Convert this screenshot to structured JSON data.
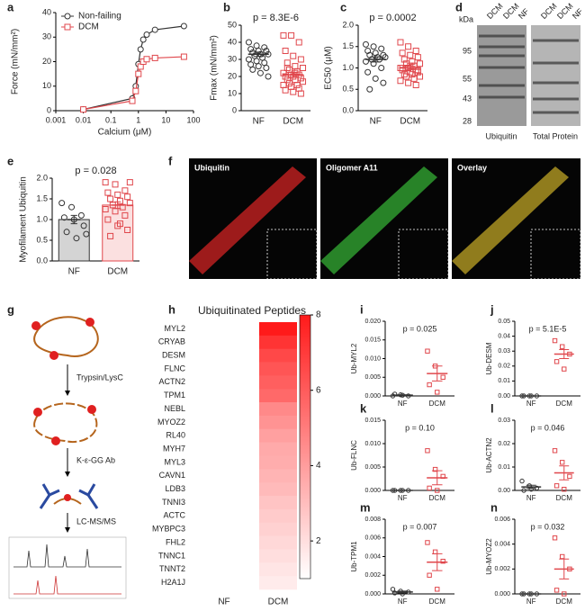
{
  "chart_data": [
    {
      "type": "line",
      "panel": "a",
      "xlabel": "Calcium (μM)",
      "ylabel": "Force (mN/mm²)",
      "xlog": true,
      "xlim": [
        0.001,
        100
      ],
      "xticks": [
        0.001,
        0.01,
        0.1,
        1,
        10,
        100
      ],
      "ylim": [
        0,
        40
      ],
      "yticks": [
        0,
        10,
        20,
        30,
        40
      ],
      "legend": "upper-left",
      "x": [
        0.01,
        0.6,
        0.8,
        1,
        1.2,
        1.5,
        2,
        4,
        45
      ],
      "series": [
        {
          "name": "Non-failing",
          "color": "#333333",
          "marker": "circle",
          "values": [
            0.5,
            5,
            10,
            19,
            25,
            29,
            31,
            33,
            34.5
          ]
        },
        {
          "name": "DCM",
          "color": "#e0474c",
          "marker": "square",
          "values": [
            0.5,
            4,
            8,
            15,
            18,
            20,
            21,
            21.5,
            22
          ]
        }
      ]
    },
    {
      "type": "strip",
      "panel": "b",
      "title": "p = 8.3E-6",
      "ylabel": "Fmax (mN/mm²)",
      "categories": [
        "NF",
        "DCM"
      ],
      "ylim": [
        0,
        50
      ],
      "yticks": [
        0,
        10,
        20,
        30,
        40,
        50
      ],
      "groups": [
        {
          "color": "#333333",
          "marker": "circle",
          "mean": 33,
          "sem": 1.3,
          "values": [
            40,
            38,
            37,
            36,
            35,
            35,
            34,
            33,
            33,
            32,
            31,
            30,
            29,
            28,
            27,
            26,
            25,
            24,
            22,
            20
          ]
        },
        {
          "color": "#e0474c",
          "marker": "square",
          "mean": 21,
          "sem": 1.4,
          "values": [
            44,
            44,
            40,
            35,
            32,
            30,
            28,
            26,
            25,
            24,
            23,
            22,
            21,
            21,
            20,
            20,
            19,
            18,
            18,
            17,
            16,
            15,
            15,
            14,
            13,
            12,
            11,
            10,
            25,
            22
          ]
        }
      ]
    },
    {
      "type": "strip",
      "panel": "c",
      "title": "p = 0.0002",
      "ylabel": "EC50 (μM)",
      "categories": [
        "NF",
        "DCM"
      ],
      "ylim": [
        0,
        2
      ],
      "yticks": [
        {
          "value": 0,
          "label": "0.0"
        },
        {
          "value": 0.5,
          "label": "0.5"
        },
        {
          "value": 1,
          "label": "1.0"
        },
        {
          "value": 1.5,
          "label": "1.5"
        },
        {
          "value": 2,
          "label": "2.0"
        }
      ],
      "groups": [
        {
          "color": "#333333",
          "marker": "circle",
          "mean": 1.2,
          "sem": 0.06,
          "values": [
            1.55,
            1.5,
            1.45,
            1.4,
            1.35,
            1.3,
            1.3,
            1.25,
            1.25,
            1.2,
            1.2,
            1.15,
            1.1,
            1.0,
            0.9,
            0.75,
            0.65,
            0.5
          ]
        },
        {
          "color": "#e0474c",
          "marker": "square",
          "mean": 1.0,
          "sem": 0.04,
          "values": [
            1.6,
            1.5,
            1.4,
            1.35,
            1.3,
            1.25,
            1.2,
            1.15,
            1.1,
            1.1,
            1.05,
            1.0,
            1.0,
            0.95,
            0.95,
            0.9,
            0.9,
            0.85,
            0.85,
            0.8,
            0.8,
            0.75,
            0.7,
            0.65,
            0.6,
            1.0,
            1.05,
            0.95
          ]
        }
      ]
    },
    {
      "type": "bar",
      "panel": "e",
      "title": "p = 0.028",
      "ylabel": "Myofilament Ubiquitin",
      "categories": [
        "NF",
        "DCM"
      ],
      "ylim": [
        0,
        2
      ],
      "yticks": [
        {
          "value": 0,
          "label": "0.0"
        },
        {
          "value": 0.5,
          "label": "0.5"
        },
        {
          "value": 1,
          "label": "1.0"
        },
        {
          "value": 1.5,
          "label": "1.5"
        },
        {
          "value": 2,
          "label": "2.0"
        }
      ],
      "groups": [
        {
          "color": "#333333",
          "fill": "#d4d4d4",
          "marker": "circle",
          "mean": 1.0,
          "sem": 0.1,
          "values": [
            1.4,
            1.3,
            1.1,
            1.05,
            1.0,
            0.85,
            0.7,
            0.55,
            0.65
          ]
        },
        {
          "color": "#e0474c",
          "fill": "#fbe0e0",
          "marker": "square",
          "mean": 1.35,
          "sem": 0.08,
          "values": [
            1.9,
            1.85,
            1.7,
            1.65,
            1.6,
            1.55,
            1.5,
            1.45,
            1.4,
            1.35,
            1.3,
            1.25,
            1.2,
            1.1,
            1.0,
            0.85,
            0.75,
            0.6,
            0.9,
            1.9
          ]
        }
      ]
    },
    {
      "type": "heatmap",
      "panel": "h",
      "title": "Ubiquitinated Peptides",
      "columns": [
        "NF",
        "DCM"
      ],
      "colormap": [
        "#ffffff",
        "#ff1a1a"
      ],
      "zlim": [
        1,
        8
      ],
      "zticks": [
        2,
        4,
        6,
        8
      ],
      "rows": [
        "MYL2",
        "CRYAB",
        "DESM",
        "FLNC",
        "ACTN2",
        "TPM1",
        "NEBL",
        "MYOZ2",
        "RL40",
        "MYH7",
        "MYL3",
        "CAVN1",
        "LDB3",
        "TNNI3",
        "ACTC",
        "MYBPC3",
        "FHL2",
        "TNNC1",
        "TNNT2",
        "H2A1J"
      ],
      "values": [
        [
          1,
          8
        ],
        [
          1,
          7.2
        ],
        [
          1,
          6.6
        ],
        [
          1,
          6.2
        ],
        [
          1,
          5.9
        ],
        [
          1,
          5.6
        ],
        [
          1,
          4.6
        ],
        [
          1,
          4.3
        ],
        [
          1,
          3.9
        ],
        [
          1,
          3.6
        ],
        [
          1,
          3.5
        ],
        [
          1,
          3.3
        ],
        [
          1,
          3.1
        ],
        [
          1,
          2.8
        ],
        [
          1,
          2.6
        ],
        [
          1,
          2.4
        ],
        [
          1,
          2.2
        ],
        [
          1,
          2.0
        ],
        [
          1,
          1.8
        ],
        [
          1,
          1.6
        ]
      ]
    },
    {
      "type": "strip",
      "panel": "i",
      "title": "p = 0.025",
      "ylabel": "Ub-MYL2",
      "categories": [
        "NF",
        "DCM"
      ],
      "ylim": [
        0,
        0.02
      ],
      "yticks": [
        {
          "value": 0,
          "label": "0.000"
        },
        {
          "value": 0.005,
          "label": "0.005"
        },
        {
          "value": 0.01,
          "label": "0.010"
        },
        {
          "value": 0.015,
          "label": "0.015"
        },
        {
          "value": 0.02,
          "label": "0.020"
        }
      ],
      "groups": [
        {
          "color": "#333333",
          "marker": "circle",
          "mean": 0.0002,
          "sem": 0.0001,
          "values": [
            0,
            0.0003,
            0,
            0.0005,
            0.0002
          ]
        },
        {
          "color": "#e0474c",
          "marker": "square",
          "mean": 0.006,
          "sem": 0.002,
          "values": [
            0.012,
            0.008,
            0.005,
            0.003,
            0.001
          ]
        }
      ]
    },
    {
      "type": "strip",
      "panel": "j",
      "title": "p = 5.1E-5",
      "ylabel": "Ub-DESM",
      "categories": [
        "NF",
        "DCM"
      ],
      "ylim": [
        0,
        0.05
      ],
      "yticks": [
        {
          "value": 0,
          "label": "0.00"
        },
        {
          "value": 0.01,
          "label": "0.01"
        },
        {
          "value": 0.02,
          "label": "0.02"
        },
        {
          "value": 0.03,
          "label": "0.03"
        },
        {
          "value": 0.04,
          "label": "0.04"
        },
        {
          "value": 0.05,
          "label": "0.05"
        }
      ],
      "groups": [
        {
          "color": "#333333",
          "marker": "circle",
          "mean": 0,
          "sem": 0,
          "values": [
            0,
            0,
            0,
            0,
            0
          ]
        },
        {
          "color": "#e0474c",
          "marker": "square",
          "mean": 0.028,
          "sem": 0.003,
          "values": [
            0.037,
            0.033,
            0.028,
            0.023,
            0.018
          ]
        }
      ]
    },
    {
      "type": "strip",
      "panel": "k",
      "title": "p = 0.10",
      "ylabel": "Ub-FLNC",
      "categories": [
        "NF",
        "DCM"
      ],
      "ylim": [
        0,
        0.015
      ],
      "yticks": [
        {
          "value": 0,
          "label": "0.000"
        },
        {
          "value": 0.005,
          "label": "0.005"
        },
        {
          "value": 0.01,
          "label": "0.010"
        },
        {
          "value": 0.015,
          "label": "0.015"
        }
      ],
      "groups": [
        {
          "color": "#333333",
          "marker": "circle",
          "mean": 0,
          "sem": 0,
          "values": [
            0,
            0,
            0,
            0,
            0
          ]
        },
        {
          "color": "#e0474c",
          "marker": "square",
          "mean": 0.0027,
          "sem": 0.0015,
          "values": [
            0.0085,
            0.0045,
            0.003,
            0.0005,
            0
          ]
        }
      ]
    },
    {
      "type": "strip",
      "panel": "l",
      "title": "p = 0.046",
      "ylabel": "Ub-ACTN2",
      "categories": [
        "NF",
        "DCM"
      ],
      "ylim": [
        0,
        0.03
      ],
      "yticks": [
        {
          "value": 0,
          "label": "0.00"
        },
        {
          "value": 0.01,
          "label": "0.01"
        },
        {
          "value": 0.02,
          "label": "0.02"
        },
        {
          "value": 0.03,
          "label": "0.03"
        }
      ],
      "groups": [
        {
          "color": "#333333",
          "marker": "circle",
          "mean": 0.0015,
          "sem": 0.0007,
          "values": [
            0.004,
            0.002,
            0.001,
            0,
            0.0005
          ]
        },
        {
          "color": "#e0474c",
          "marker": "square",
          "mean": 0.0075,
          "sem": 0.003,
          "values": [
            0.017,
            0.012,
            0.006,
            0.002,
            0.0005
          ]
        }
      ]
    },
    {
      "type": "strip",
      "panel": "m",
      "title": "p = 0.007",
      "ylabel": "Ub-TPM1",
      "categories": [
        "NF",
        "DCM"
      ],
      "ylim": [
        0,
        0.008
      ],
      "yticks": [
        {
          "value": 0,
          "label": "0.000"
        },
        {
          "value": 0.002,
          "label": "0.002"
        },
        {
          "value": 0.004,
          "label": "0.004"
        },
        {
          "value": 0.006,
          "label": "0.006"
        },
        {
          "value": 0.008,
          "label": "0.008"
        }
      ],
      "groups": [
        {
          "color": "#333333",
          "marker": "circle",
          "mean": 0.0002,
          "sem": 0.0001,
          "values": [
            0.0005,
            0.0003,
            0.0002,
            0.0001,
            0
          ]
        },
        {
          "color": "#e0474c",
          "marker": "square",
          "mean": 0.0034,
          "sem": 0.0009,
          "values": [
            0.0055,
            0.0045,
            0.0035,
            0.002,
            0.0005
          ]
        }
      ]
    },
    {
      "type": "strip",
      "panel": "n",
      "title": "p = 0.032",
      "ylabel": "Ub-MYOZ2",
      "categories": [
        "NF",
        "DCM"
      ],
      "ylim": [
        0,
        0.006
      ],
      "yticks": [
        {
          "value": 0,
          "label": "0.000"
        },
        {
          "value": 0.002,
          "label": "0.002"
        },
        {
          "value": 0.004,
          "label": "0.004"
        },
        {
          "value": 0.006,
          "label": "0.006"
        }
      ],
      "groups": [
        {
          "color": "#333333",
          "marker": "circle",
          "mean": 0,
          "sem": 0,
          "values": [
            0,
            0,
            0,
            0,
            0
          ]
        },
        {
          "color": "#e0474c",
          "marker": "square",
          "mean": 0.002,
          "sem": 0.0008,
          "values": [
            0.0045,
            0.003,
            0.002,
            0.0003,
            0
          ]
        }
      ]
    }
  ],
  "blot": {
    "panel": "d",
    "unit": "kDa",
    "markers": [
      "95",
      "55",
      "43",
      "28"
    ],
    "lanes": [
      "DCM",
      "DCM",
      "NF",
      "DCM",
      "DCM",
      "NF"
    ],
    "captions": [
      "Ubiquitin",
      "Total Protein"
    ]
  },
  "micrograph": {
    "panel": "f",
    "labels": [
      "Ubiquitin",
      "Oligomer A11",
      "Overlay"
    ]
  },
  "workflow": {
    "panel": "g",
    "steps": [
      "Trypsin/LysC",
      "K-ε-GG Ab",
      "LC-MS/MS"
    ]
  }
}
